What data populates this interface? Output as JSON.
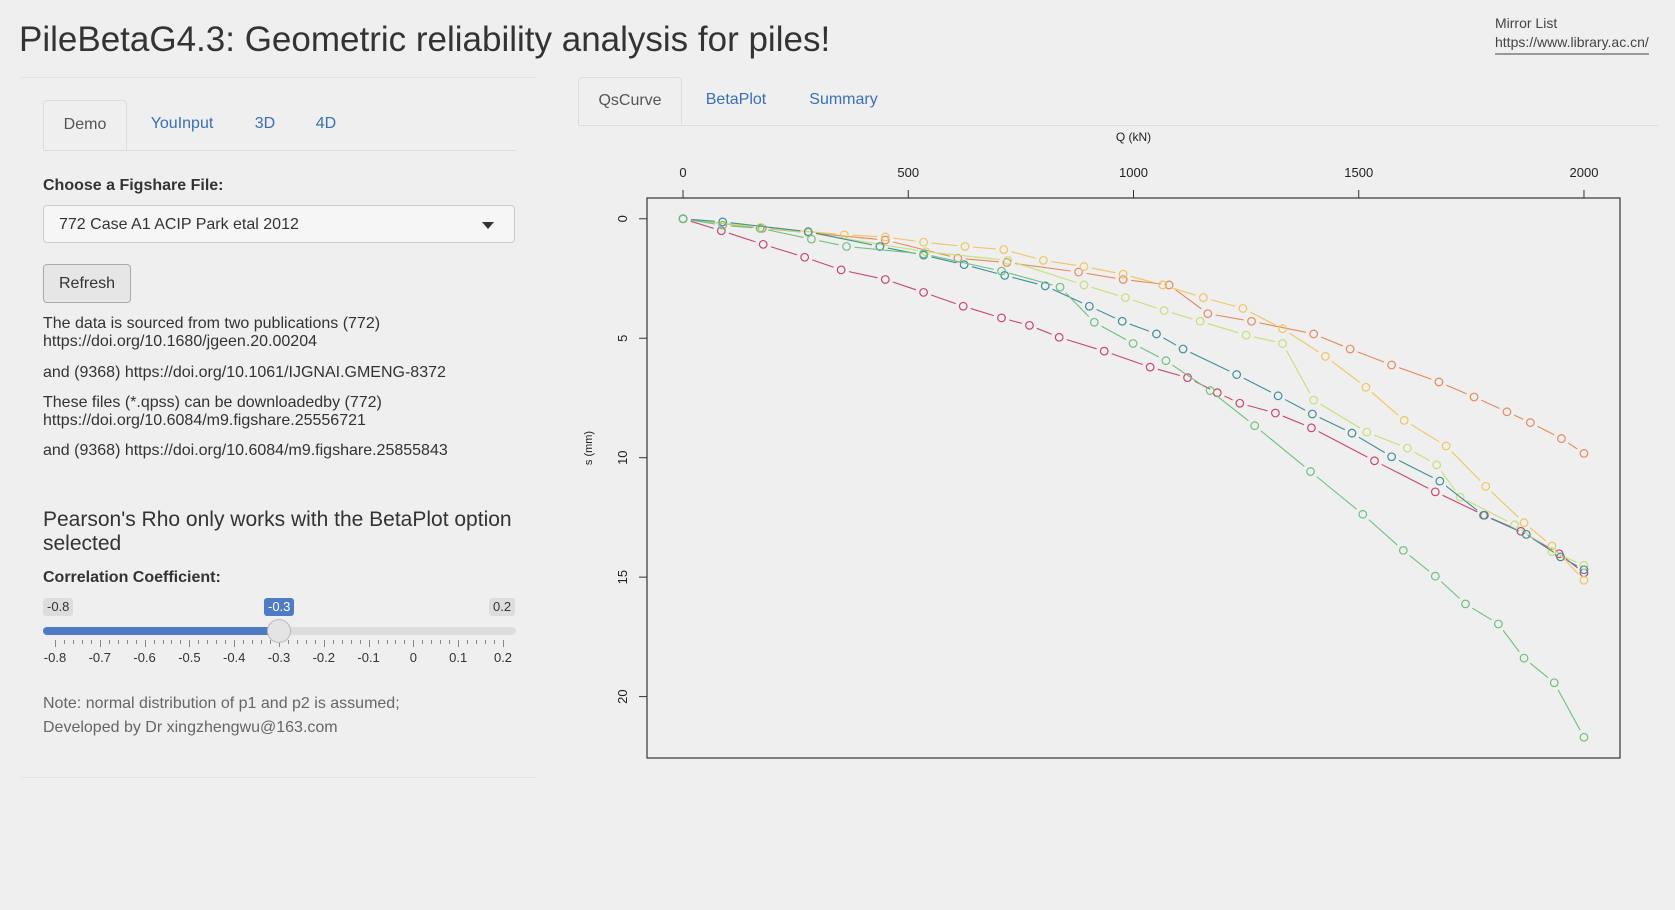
{
  "header": {
    "title": "PileBetaG4.3: Geometric reliability analysis for piles!"
  },
  "mirror": {
    "label": "Mirror List",
    "url": "https://www.library.ac.cn/"
  },
  "left_tabs": [
    {
      "label": "Demo",
      "active": true
    },
    {
      "label": "YouInput"
    },
    {
      "label": "3D"
    },
    {
      "label": "4D"
    }
  ],
  "file_select": {
    "label": "Choose a Figshare File:",
    "value": "772 Case A1 ACIP Park etal 2012"
  },
  "refresh_label": "Refresh",
  "info": [
    "The data is sourced from two publications (772) https://doi.org/10.1680/jgeen.20.00204",
    "and (9368) https://doi.org/10.1061/IJGNAI.GMENG-8372",
    "These files (*.qpss) can be downloadedby (772) https://doi.org/10.6084/m9.figshare.25556721",
    "and (9368) https://doi.org/10.6084/m9.figshare.25855843"
  ],
  "pearson_note": "Pearson's Rho only works with the BetaPlot option selected",
  "slider": {
    "label": "Correlation Coefficient:",
    "min": -0.8,
    "max": 0.2,
    "value": -0.3,
    "min_label": "-0.8",
    "max_label": "0.2",
    "value_label": "-0.3",
    "tick_labels": [
      "-0.8",
      "-0.7",
      "-0.6",
      "-0.5",
      "-0.4",
      "-0.3",
      "-0.2",
      "-0.1",
      "0",
      "0.1",
      "0.2"
    ]
  },
  "footer_note": [
    "Note: normal distribution of p1 and p2 is assumed;",
    "Developed by Dr xingzhengwu@163.com"
  ],
  "right_tabs": [
    {
      "label": "QsCurve",
      "active": true
    },
    {
      "label": "BetaPlot"
    },
    {
      "label": "Summary"
    }
  ],
  "chart_data": {
    "type": "line",
    "xlabel": "Q (kN)",
    "ylabel": "s (mm)",
    "xlim": [
      -80,
      2080
    ],
    "ylim": [
      -0.87,
      22.57
    ],
    "y_reversed": true,
    "x_axis_position": "top",
    "xticks": [
      0,
      500,
      1000,
      1500,
      2000
    ],
    "yticks": [
      0,
      5,
      10,
      15,
      20
    ],
    "grid": false,
    "series": [
      {
        "name": "red",
        "color": "#c8466e",
        "Q": [
          0,
          85,
          178,
          270,
          351,
          449,
          534,
          622,
          707,
          769,
          835,
          935,
          1037,
          1120,
          1186,
          1236,
          1315,
          1395,
          1535,
          1670,
          1779,
          1860,
          1945,
          2000
        ],
        "s": [
          0,
          0.5,
          1.07,
          1.61,
          2.14,
          2.54,
          3.08,
          3.66,
          4.15,
          4.46,
          4.96,
          5.54,
          6.21,
          6.65,
          7.28,
          7.72,
          8.13,
          8.75,
          10.13,
          11.43,
          12.41,
          13.08,
          14.02,
          14.82
        ]
      },
      {
        "name": "orange",
        "color": "#e58a5c",
        "Q": [
          0,
          176,
          278,
          449,
          610,
          719,
          878,
          977,
          1079,
          1165,
          1262,
          1400,
          1481,
          1573,
          1678,
          1756,
          1829,
          1881,
          1950,
          2000
        ],
        "s": [
          0,
          0.4,
          0.58,
          0.89,
          1.65,
          1.83,
          2.23,
          2.54,
          2.77,
          3.97,
          4.29,
          4.82,
          5.45,
          6.12,
          6.83,
          7.46,
          8.08,
          8.53,
          9.2,
          9.82
        ]
      },
      {
        "name": "yellow",
        "color": "#efc65e",
        "Q": [
          0,
          173,
          358,
          449,
          534,
          626,
          712,
          800,
          890,
          977,
          1065,
          1155,
          1243,
          1331,
          1426,
          1516,
          1601,
          1694,
          1782,
          1867,
          1929,
          2000
        ],
        "s": [
          0,
          0.36,
          0.67,
          0.76,
          0.98,
          1.16,
          1.29,
          1.74,
          2.0,
          2.32,
          2.77,
          3.3,
          3.75,
          4.6,
          5.76,
          7.05,
          8.44,
          9.51,
          11.2,
          12.72,
          13.7,
          15.13
        ]
      },
      {
        "name": "light-green",
        "color": "#c5df78",
        "Q": [
          0,
          173,
          278,
          539,
          721,
          890,
          982,
          1068,
          1148,
          1250,
          1331,
          1400,
          1518,
          1608,
          1673,
          1725,
          1846,
          1929,
          2000
        ],
        "s": [
          0,
          0.36,
          0.58,
          1.38,
          1.74,
          2.77,
          3.3,
          3.84,
          4.29,
          4.87,
          5.22,
          7.59,
          8.93,
          9.6,
          10.3,
          11.65,
          12.81,
          13.93,
          14.51
        ]
      },
      {
        "name": "teal",
        "color": "#3d8f99",
        "Q": [
          0,
          88,
          278,
          437,
          534,
          624,
          714,
          804,
          902,
          975,
          1051,
          1110,
          1229,
          1321,
          1397,
          1485,
          1573,
          1680,
          1777,
          1872,
          1948,
          2000
        ],
        "s": [
          0,
          0.13,
          0.54,
          1.16,
          1.52,
          1.92,
          2.37,
          2.81,
          3.66,
          4.29,
          4.82,
          5.45,
          6.52,
          7.41,
          8.17,
          8.97,
          9.96,
          10.98,
          12.41,
          13.21,
          14.15,
          14.69
        ]
      },
      {
        "name": "green",
        "color": "#6cc07e",
        "Q": [
          0,
          88,
          171,
          285,
          363,
          534,
          707,
          837,
          913,
          999,
          1072,
          1170,
          1269,
          1393,
          1509,
          1599,
          1670,
          1737,
          1810,
          1867,
          1934,
          2000
        ],
        "s": [
          0,
          0.27,
          0.4,
          0.85,
          1.16,
          1.47,
          2.19,
          2.86,
          4.33,
          5.22,
          5.94,
          7.19,
          8.66,
          10.58,
          12.37,
          13.88,
          14.96,
          16.12,
          16.96,
          18.39,
          19.42,
          21.7
        ]
      }
    ]
  }
}
